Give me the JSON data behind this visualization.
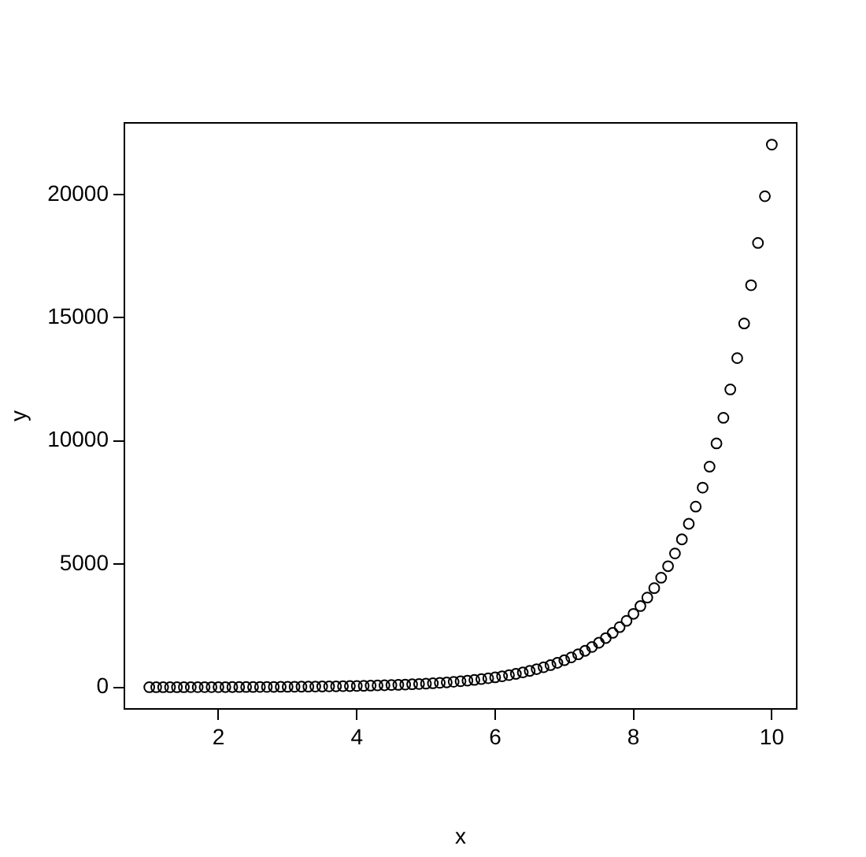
{
  "chart_data": {
    "type": "scatter",
    "xlabel": "x",
    "ylabel": "y",
    "marker": "circle",
    "grid": false,
    "legend": false,
    "xlim": [
      0.64,
      10.36
    ],
    "ylim": [
      -878,
      22907
    ],
    "xticks": [
      2,
      4,
      6,
      8,
      10
    ],
    "yticks": [
      0,
      5000,
      10000,
      15000,
      20000
    ],
    "series": [
      {
        "color": "#000000",
        "x": [
          1,
          1.1,
          1.2,
          1.3,
          1.4,
          1.5,
          1.6,
          1.7,
          1.8,
          1.9,
          2,
          2.1,
          2.2,
          2.3,
          2.4,
          2.5,
          2.6,
          2.7,
          2.8,
          2.9,
          3,
          3.1,
          3.2,
          3.3,
          3.4,
          3.5,
          3.6,
          3.7,
          3.8,
          3.9,
          4,
          4.1,
          4.2,
          4.3,
          4.4,
          4.5,
          4.6,
          4.7,
          4.8,
          4.9,
          5,
          5.1,
          5.2,
          5.3,
          5.4,
          5.5,
          5.6,
          5.7,
          5.8,
          5.9,
          6,
          6.1,
          6.2,
          6.3,
          6.4,
          6.5,
          6.6,
          6.7,
          6.8,
          6.9,
          7,
          7.1,
          7.2,
          7.3,
          7.4,
          7.5,
          7.6,
          7.7,
          7.8,
          7.9,
          8,
          8.1,
          8.2,
          8.3,
          8.4,
          8.5,
          8.6,
          8.7,
          8.8,
          8.9,
          9,
          9.1,
          9.2,
          9.3,
          9.4,
          9.5,
          9.6,
          9.7,
          9.8,
          9.9,
          10
        ],
        "values": [
          3,
          3,
          3,
          4,
          4,
          4,
          5,
          5,
          6,
          7,
          7,
          8,
          9,
          10,
          11,
          12,
          13,
          15,
          16,
          18,
          20,
          22,
          25,
          27,
          30,
          33,
          37,
          40,
          45,
          49,
          55,
          60,
          67,
          74,
          81,
          90,
          99,
          110,
          122,
          134,
          148,
          164,
          181,
          200,
          221,
          245,
          270,
          299,
          330,
          365,
          403,
          446,
          493,
          545,
          602,
          665,
          735,
          812,
          898,
          992,
          1097,
          1212,
          1339,
          1480,
          1636,
          1808,
          1998,
          2208,
          2441,
          2697,
          2981,
          3295,
          3641,
          4024,
          4447,
          4915,
          5432,
          6003,
          6634,
          7332,
          8103,
          8955,
          9897,
          10938,
          12088,
          13360,
          14765,
          16318,
          18034,
          19930,
          22026
        ]
      }
    ]
  }
}
